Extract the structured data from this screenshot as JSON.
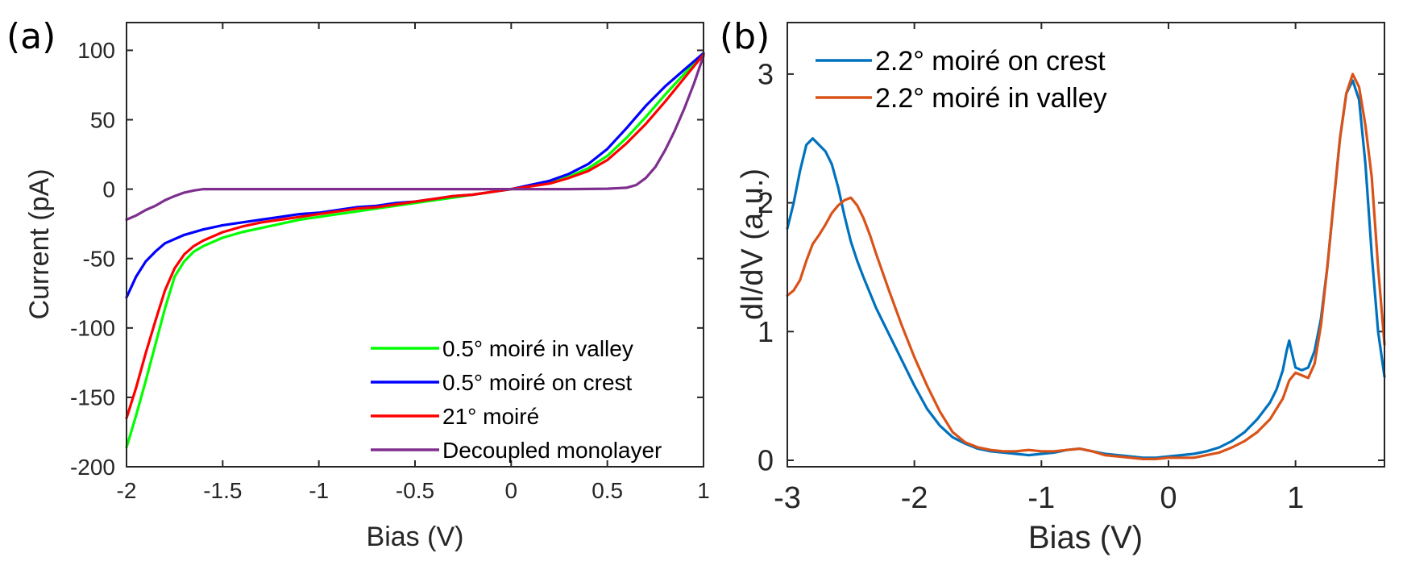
{
  "chart_data": [
    {
      "panel_label": "(a)",
      "type": "line",
      "title": "",
      "xlabel": "Bias (V)",
      "ylabel": "Current (pA)",
      "xlim": [
        -2,
        1
      ],
      "ylim": [
        -200,
        120
      ],
      "xticks": [
        -2,
        -1.5,
        -1,
        -0.5,
        0,
        0.5,
        1
      ],
      "xtick_labels": [
        "-2",
        "-1.5",
        "-1",
        "-0.5",
        "0",
        "0.5",
        "1"
      ],
      "yticks": [
        -200,
        -150,
        -100,
        -50,
        0,
        50,
        100
      ],
      "ytick_labels": [
        "-200",
        "-150",
        "-100",
        "-50",
        "0",
        "50",
        "100"
      ],
      "legend_position": "bottom-right",
      "series": [
        {
          "name": "0.5° moiré in valley",
          "color": "#00ff00",
          "points": [
            [
              -2,
              -186
            ],
            [
              -1.95,
              -163
            ],
            [
              -1.9,
              -138
            ],
            [
              -1.85,
              -112
            ],
            [
              -1.8,
              -86
            ],
            [
              -1.75,
              -63
            ],
            [
              -1.7,
              -52
            ],
            [
              -1.65,
              -45
            ],
            [
              -1.6,
              -41
            ],
            [
              -1.5,
              -35
            ],
            [
              -1.4,
              -31
            ],
            [
              -1.3,
              -28
            ],
            [
              -1.2,
              -25
            ],
            [
              -1.1,
              -22
            ],
            [
              -1,
              -20
            ],
            [
              -0.9,
              -18
            ],
            [
              -0.8,
              -16
            ],
            [
              -0.7,
              -14
            ],
            [
              -0.6,
              -12
            ],
            [
              -0.5,
              -10
            ],
            [
              -0.4,
              -8
            ],
            [
              -0.3,
              -6
            ],
            [
              -0.2,
              -4
            ],
            [
              -0.1,
              -2
            ],
            [
              0,
              0
            ],
            [
              0.1,
              2
            ],
            [
              0.2,
              5
            ],
            [
              0.3,
              9
            ],
            [
              0.4,
              15
            ],
            [
              0.5,
              24
            ],
            [
              0.6,
              37
            ],
            [
              0.7,
              52
            ],
            [
              0.8,
              68
            ],
            [
              0.9,
              83
            ],
            [
              1,
              98
            ]
          ]
        },
        {
          "name": "0.5° moiré on crest",
          "color": "#0000ff",
          "points": [
            [
              -2,
              -78
            ],
            [
              -1.95,
              -63
            ],
            [
              -1.9,
              -52
            ],
            [
              -1.85,
              -45
            ],
            [
              -1.8,
              -39
            ],
            [
              -1.7,
              -33
            ],
            [
              -1.6,
              -29
            ],
            [
              -1.5,
              -26
            ],
            [
              -1.4,
              -24
            ],
            [
              -1.3,
              -22
            ],
            [
              -1.2,
              -20
            ],
            [
              -1.1,
              -18
            ],
            [
              -1,
              -17
            ],
            [
              -0.9,
              -15
            ],
            [
              -0.8,
              -13
            ],
            [
              -0.7,
              -12
            ],
            [
              -0.6,
              -10
            ],
            [
              -0.5,
              -9
            ],
            [
              -0.4,
              -7
            ],
            [
              -0.3,
              -5
            ],
            [
              -0.2,
              -4
            ],
            [
              -0.1,
              -2
            ],
            [
              0,
              0
            ],
            [
              0.1,
              3
            ],
            [
              0.2,
              6
            ],
            [
              0.3,
              11
            ],
            [
              0.4,
              18
            ],
            [
              0.5,
              29
            ],
            [
              0.6,
              44
            ],
            [
              0.7,
              60
            ],
            [
              0.8,
              74
            ],
            [
              0.9,
              86
            ],
            [
              1,
              98
            ]
          ]
        },
        {
          "name": "21° moiré",
          "color": "#ff0000",
          "points": [
            [
              -2,
              -165
            ],
            [
              -1.95,
              -143
            ],
            [
              -1.9,
              -118
            ],
            [
              -1.85,
              -95
            ],
            [
              -1.8,
              -73
            ],
            [
              -1.75,
              -57
            ],
            [
              -1.7,
              -47
            ],
            [
              -1.65,
              -41
            ],
            [
              -1.6,
              -37
            ],
            [
              -1.5,
              -31
            ],
            [
              -1.4,
              -27
            ],
            [
              -1.3,
              -24
            ],
            [
              -1.2,
              -22
            ],
            [
              -1.1,
              -20
            ],
            [
              -1,
              -18
            ],
            [
              -0.9,
              -16
            ],
            [
              -0.8,
              -14
            ],
            [
              -0.7,
              -13
            ],
            [
              -0.6,
              -11
            ],
            [
              -0.5,
              -9
            ],
            [
              -0.4,
              -7
            ],
            [
              -0.3,
              -5
            ],
            [
              -0.2,
              -4
            ],
            [
              -0.1,
              -2
            ],
            [
              0,
              0
            ],
            [
              0.1,
              2
            ],
            [
              0.2,
              4
            ],
            [
              0.3,
              8
            ],
            [
              0.4,
              13
            ],
            [
              0.5,
              21
            ],
            [
              0.6,
              33
            ],
            [
              0.7,
              47
            ],
            [
              0.8,
              63
            ],
            [
              0.9,
              80
            ],
            [
              1,
              97
            ]
          ]
        },
        {
          "name": "Decoupled monolayer",
          "color": "#7e2f8e",
          "points": [
            [
              -2,
              -22
            ],
            [
              -1.95,
              -19
            ],
            [
              -1.9,
              -15
            ],
            [
              -1.85,
              -12
            ],
            [
              -1.8,
              -8
            ],
            [
              -1.75,
              -5
            ],
            [
              -1.7,
              -2.5
            ],
            [
              -1.65,
              -1
            ],
            [
              -1.6,
              0
            ],
            [
              -1.5,
              0
            ],
            [
              -1,
              0
            ],
            [
              -0.5,
              0
            ],
            [
              0,
              0
            ],
            [
              0.3,
              0
            ],
            [
              0.5,
              0.3
            ],
            [
              0.6,
              1
            ],
            [
              0.65,
              3
            ],
            [
              0.7,
              8
            ],
            [
              0.75,
              16
            ],
            [
              0.8,
              28
            ],
            [
              0.85,
              42
            ],
            [
              0.9,
              58
            ],
            [
              0.95,
              76
            ],
            [
              1,
              96
            ]
          ]
        }
      ]
    },
    {
      "panel_label": "(b)",
      "type": "line",
      "title": "",
      "xlabel": "Bias (V)",
      "ylabel": "dI/dV (a.u.)",
      "xlim": [
        -3,
        1.7
      ],
      "ylim": [
        -0.05,
        3.4
      ],
      "xticks": [
        -3,
        -2,
        -1,
        0,
        1
      ],
      "xtick_labels": [
        "-3",
        "-2",
        "-1",
        "0",
        "1"
      ],
      "yticks": [
        0,
        1,
        2,
        3
      ],
      "ytick_labels": [
        "0",
        "1",
        "2",
        "3"
      ],
      "legend_position": "top-left",
      "series": [
        {
          "name": "2.2° moiré on crest",
          "color": "#0072bd",
          "points": [
            [
              -3,
              1.8
            ],
            [
              -2.95,
              2.0
            ],
            [
              -2.9,
              2.25
            ],
            [
              -2.85,
              2.45
            ],
            [
              -2.8,
              2.5
            ],
            [
              -2.75,
              2.45
            ],
            [
              -2.7,
              2.4
            ],
            [
              -2.65,
              2.3
            ],
            [
              -2.6,
              2.12
            ],
            [
              -2.55,
              1.9
            ],
            [
              -2.5,
              1.7
            ],
            [
              -2.45,
              1.55
            ],
            [
              -2.4,
              1.42
            ],
            [
              -2.35,
              1.3
            ],
            [
              -2.3,
              1.18
            ],
            [
              -2.2,
              0.98
            ],
            [
              -2.1,
              0.78
            ],
            [
              -2.0,
              0.58
            ],
            [
              -1.9,
              0.4
            ],
            [
              -1.8,
              0.27
            ],
            [
              -1.7,
              0.18
            ],
            [
              -1.6,
              0.13
            ],
            [
              -1.5,
              0.09
            ],
            [
              -1.4,
              0.07
            ],
            [
              -1.3,
              0.06
            ],
            [
              -1.2,
              0.05
            ],
            [
              -1.1,
              0.04
            ],
            [
              -1.0,
              0.05
            ],
            [
              -0.9,
              0.06
            ],
            [
              -0.8,
              0.08
            ],
            [
              -0.7,
              0.09
            ],
            [
              -0.6,
              0.07
            ],
            [
              -0.5,
              0.05
            ],
            [
              -0.4,
              0.04
            ],
            [
              -0.3,
              0.03
            ],
            [
              -0.2,
              0.02
            ],
            [
              -0.1,
              0.02
            ],
            [
              0,
              0.03
            ],
            [
              0.1,
              0.04
            ],
            [
              0.2,
              0.05
            ],
            [
              0.3,
              0.07
            ],
            [
              0.4,
              0.1
            ],
            [
              0.5,
              0.15
            ],
            [
              0.6,
              0.22
            ],
            [
              0.7,
              0.32
            ],
            [
              0.8,
              0.45
            ],
            [
              0.85,
              0.55
            ],
            [
              0.9,
              0.7
            ],
            [
              0.93,
              0.85
            ],
            [
              0.95,
              0.93
            ],
            [
              0.98,
              0.8
            ],
            [
              1.0,
              0.72
            ],
            [
              1.05,
              0.7
            ],
            [
              1.1,
              0.72
            ],
            [
              1.15,
              0.85
            ],
            [
              1.2,
              1.1
            ],
            [
              1.25,
              1.5
            ],
            [
              1.3,
              2.0
            ],
            [
              1.35,
              2.5
            ],
            [
              1.4,
              2.85
            ],
            [
              1.45,
              2.95
            ],
            [
              1.5,
              2.8
            ],
            [
              1.55,
              2.3
            ],
            [
              1.6,
              1.6
            ],
            [
              1.65,
              1.0
            ],
            [
              1.7,
              0.65
            ]
          ]
        },
        {
          "name": "2.2° moiré in valley",
          "color": "#d95319",
          "points": [
            [
              -3,
              1.28
            ],
            [
              -2.95,
              1.32
            ],
            [
              -2.9,
              1.4
            ],
            [
              -2.85,
              1.55
            ],
            [
              -2.8,
              1.68
            ],
            [
              -2.75,
              1.75
            ],
            [
              -2.7,
              1.83
            ],
            [
              -2.65,
              1.92
            ],
            [
              -2.6,
              1.98
            ],
            [
              -2.55,
              2.02
            ],
            [
              -2.5,
              2.04
            ],
            [
              -2.45,
              1.98
            ],
            [
              -2.4,
              1.88
            ],
            [
              -2.35,
              1.75
            ],
            [
              -2.3,
              1.6
            ],
            [
              -2.2,
              1.32
            ],
            [
              -2.1,
              1.05
            ],
            [
              -2.0,
              0.8
            ],
            [
              -1.9,
              0.58
            ],
            [
              -1.8,
              0.38
            ],
            [
              -1.7,
              0.22
            ],
            [
              -1.6,
              0.14
            ],
            [
              -1.5,
              0.1
            ],
            [
              -1.4,
              0.08
            ],
            [
              -1.3,
              0.07
            ],
            [
              -1.2,
              0.07
            ],
            [
              -1.1,
              0.08
            ],
            [
              -1.0,
              0.07
            ],
            [
              -0.9,
              0.07
            ],
            [
              -0.8,
              0.08
            ],
            [
              -0.7,
              0.09
            ],
            [
              -0.6,
              0.07
            ],
            [
              -0.5,
              0.04
            ],
            [
              -0.4,
              0.03
            ],
            [
              -0.3,
              0.02
            ],
            [
              -0.2,
              0.01
            ],
            [
              -0.1,
              0.01
            ],
            [
              0,
              0.02
            ],
            [
              0.1,
              0.02
            ],
            [
              0.2,
              0.02
            ],
            [
              0.3,
              0.04
            ],
            [
              0.4,
              0.06
            ],
            [
              0.5,
              0.1
            ],
            [
              0.6,
              0.15
            ],
            [
              0.7,
              0.22
            ],
            [
              0.8,
              0.32
            ],
            [
              0.9,
              0.48
            ],
            [
              0.95,
              0.62
            ],
            [
              1.0,
              0.68
            ],
            [
              1.05,
              0.66
            ],
            [
              1.1,
              0.64
            ],
            [
              1.15,
              0.75
            ],
            [
              1.2,
              1.05
            ],
            [
              1.25,
              1.5
            ],
            [
              1.3,
              2.0
            ],
            [
              1.35,
              2.5
            ],
            [
              1.4,
              2.85
            ],
            [
              1.45,
              3.0
            ],
            [
              1.5,
              2.9
            ],
            [
              1.55,
              2.6
            ],
            [
              1.6,
              2.2
            ],
            [
              1.65,
              1.5
            ],
            [
              1.7,
              0.9
            ]
          ]
        }
      ]
    }
  ]
}
